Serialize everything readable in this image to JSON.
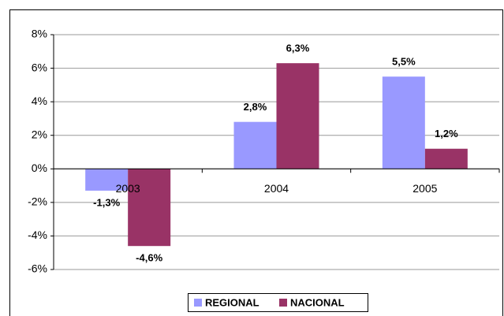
{
  "chart_data": {
    "type": "bar",
    "categories": [
      "2003",
      "2004",
      "2005"
    ],
    "series": [
      {
        "name": "REGIONAL",
        "color": "#9999ff",
        "values": [
          -1.3,
          2.8,
          5.5
        ],
        "value_labels": [
          "-1,3%",
          "2,8%",
          "5,5%"
        ]
      },
      {
        "name": "NACIONAL",
        "color": "#993366",
        "values": [
          -4.6,
          6.3,
          1.2
        ],
        "value_labels": [
          "-4,6%",
          "6,3%",
          "1,2%"
        ]
      }
    ],
    "ylim": [
      -6,
      8
    ],
    "yticks": [
      {
        "value": -6,
        "label": "-6%"
      },
      {
        "value": -4,
        "label": "-4%"
      },
      {
        "value": -2,
        "label": "-2%"
      },
      {
        "value": 0,
        "label": "0%"
      },
      {
        "value": 2,
        "label": "2%"
      },
      {
        "value": 4,
        "label": "4%"
      },
      {
        "value": 6,
        "label": "6%"
      },
      {
        "value": 8,
        "label": "8%"
      }
    ],
    "grid": true,
    "legend": "bottom"
  }
}
